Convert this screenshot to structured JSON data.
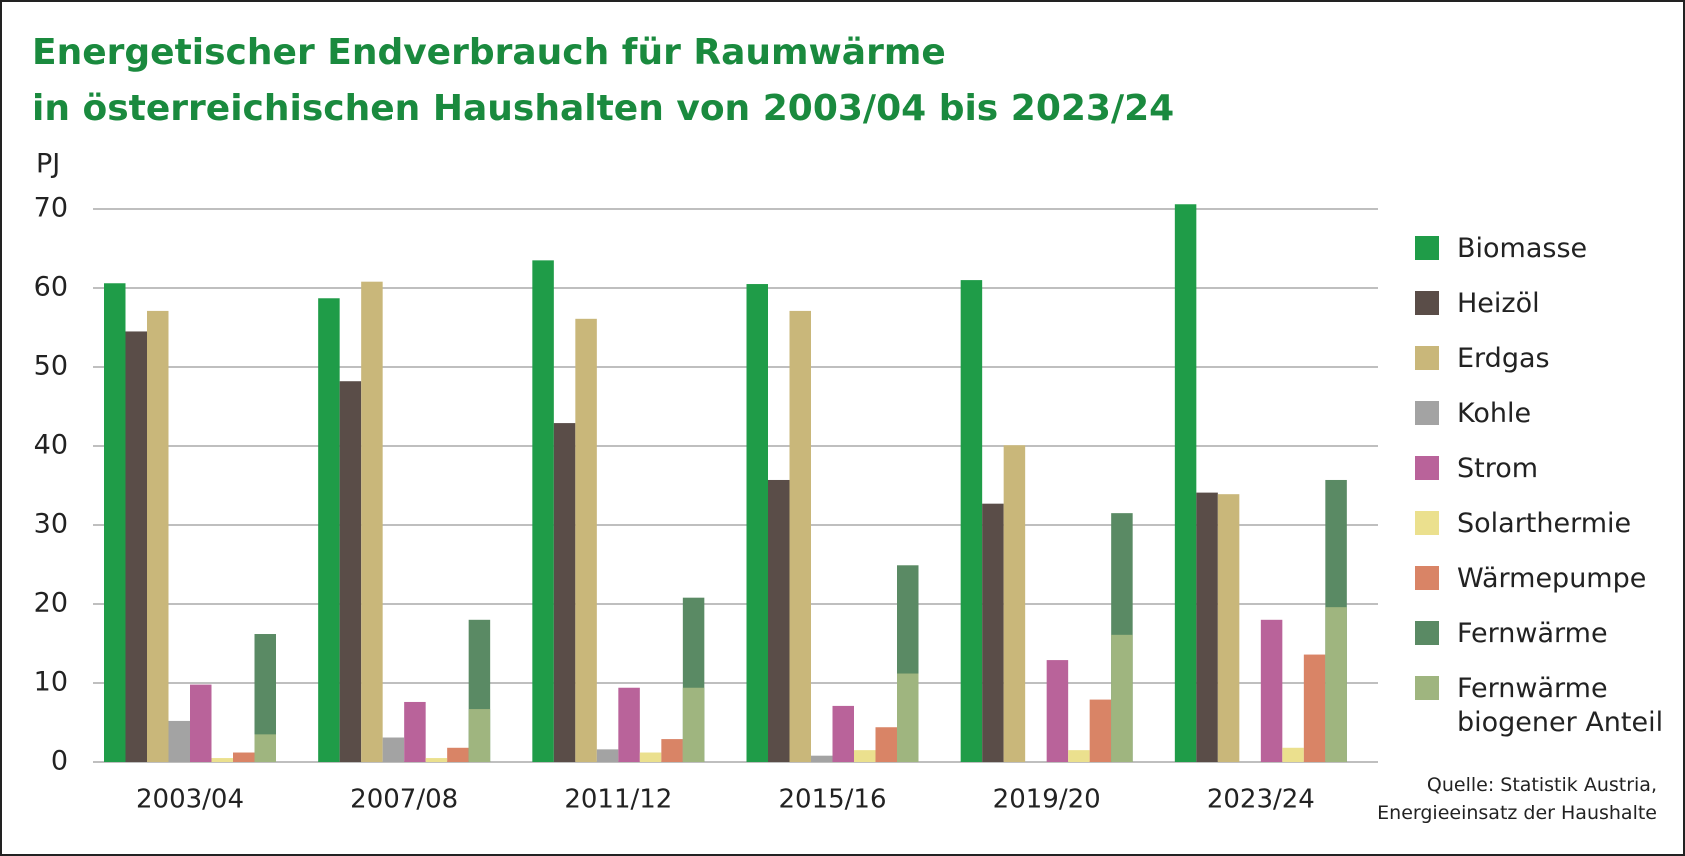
{
  "chart_data": {
    "type": "bar",
    "title": [
      "Energetischer Endverbrauch für Raumwärme",
      "in österreichischen Haushalten von 2003/04 bis 2023/24"
    ],
    "y_label": "PJ",
    "source": [
      "Quelle: Statistik Austria,",
      "Energieeinsatz der Haushalte"
    ],
    "categories": [
      "2003/04",
      "2007/08",
      "2011/12",
      "2015/16",
      "2019/20",
      "2023/24"
    ],
    "series": [
      {
        "name": "Biomasse",
        "color": "#1f9c48",
        "values": [
          60.6,
          58.7,
          63.5,
          60.5,
          61.0,
          70.6
        ]
      },
      {
        "name": "Heizöl",
        "color": "#5a4d48",
        "values": [
          54.5,
          48.2,
          42.9,
          35.7,
          32.7,
          34.1
        ]
      },
      {
        "name": "Erdgas",
        "color": "#c9b77a",
        "values": [
          57.1,
          60.8,
          56.1,
          57.1,
          40.1,
          33.9
        ]
      },
      {
        "name": "Kohle",
        "color": "#a3a3a3",
        "values": [
          5.2,
          3.1,
          1.6,
          0.8,
          0,
          0
        ]
      },
      {
        "name": "Strom",
        "color": "#b9639a",
        "values": [
          9.8,
          7.6,
          9.4,
          7.1,
          12.9,
          18.0
        ]
      },
      {
        "name": "Solarthermie",
        "color": "#ebe08e",
        "values": [
          0.5,
          0.5,
          1.2,
          1.5,
          1.5,
          1.8
        ]
      },
      {
        "name": "Wärmepumpe",
        "color": "#d98466",
        "values": [
          1.2,
          1.8,
          2.9,
          4.4,
          7.9,
          13.6
        ]
      },
      {
        "name": "Fernwärme",
        "color": "#5a8a64",
        "values": [
          16.2,
          18.0,
          20.8,
          24.9,
          31.5,
          35.7
        ]
      },
      {
        "name": "Fernwärme biogener Anteil",
        "color": "#9fb57f",
        "values": [
          3.5,
          6.7,
          9.4,
          11.2,
          16.1,
          19.6
        ]
      }
    ],
    "ylim": [
      0,
      70
    ],
    "yticks": [
      0,
      10,
      20,
      30,
      40,
      50,
      60,
      70
    ],
    "grid": true
  }
}
